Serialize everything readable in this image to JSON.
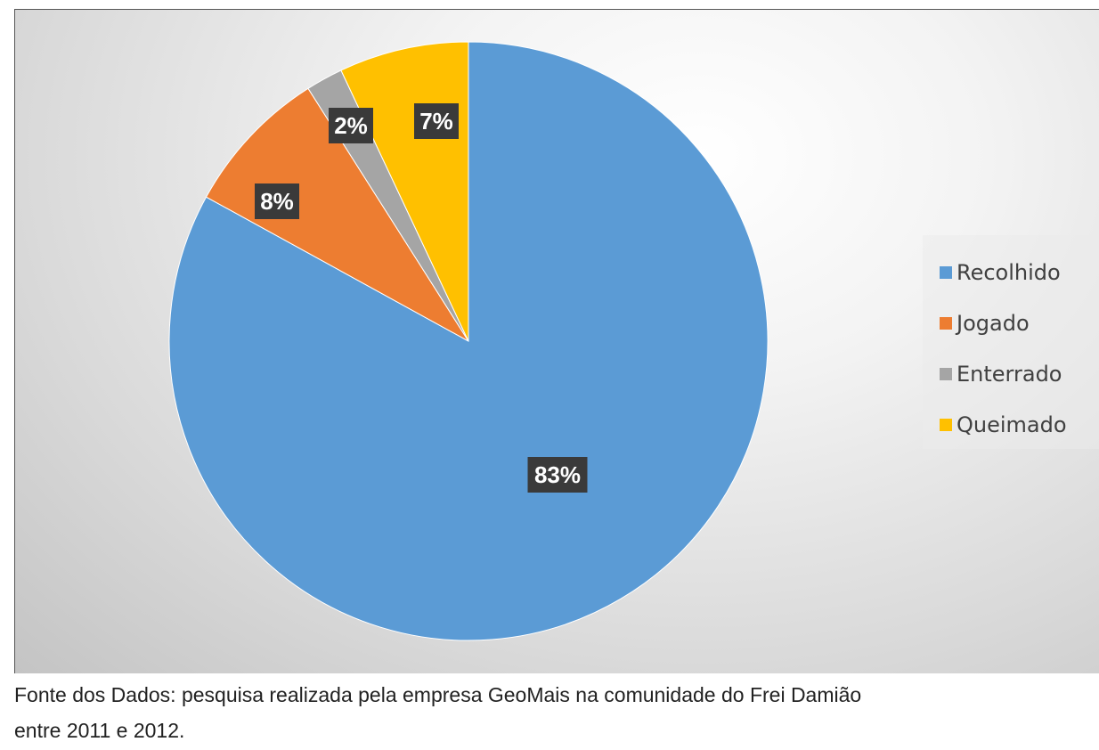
{
  "chart_data": {
    "type": "pie",
    "categories": [
      "Recolhido",
      "Jogado",
      "Enterrado",
      "Queimado"
    ],
    "values": [
      83,
      8,
      2,
      7
    ],
    "labels": [
      "83%",
      "8%",
      "2%",
      "7%"
    ],
    "colors": [
      "#5B9BD5",
      "#ED7D31",
      "#A5A5A5",
      "#FFC000"
    ],
    "legend_position": "right"
  },
  "caption": {
    "line1": "Fonte dos Dados: pesquisa realizada pela empresa GeoMais na comunidade do Frei Damião",
    "line2": "entre 2011 e 2012."
  }
}
